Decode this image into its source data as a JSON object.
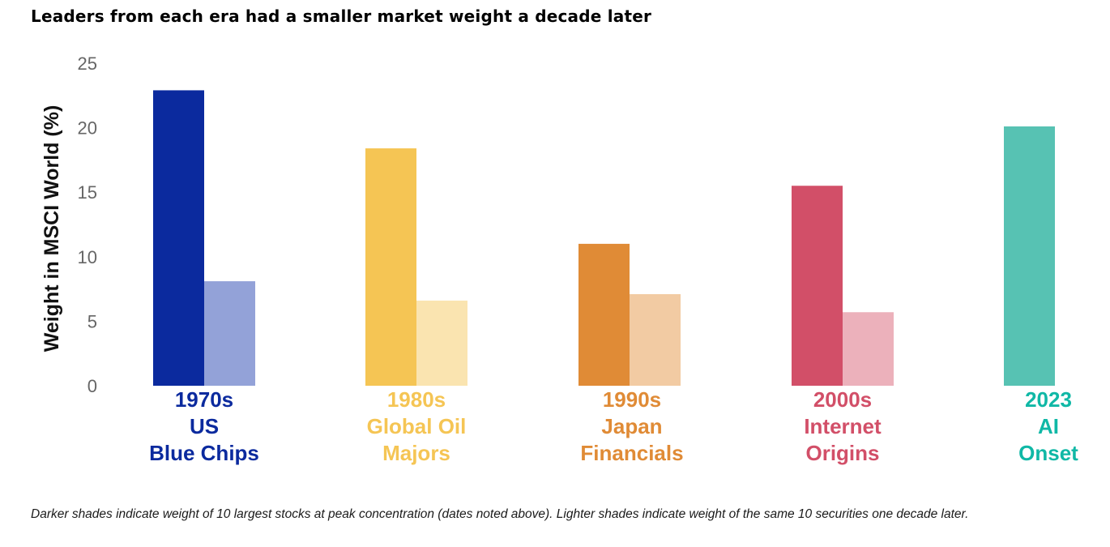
{
  "chart_data": {
    "type": "bar",
    "title": "Leaders from each era had a smaller market weight a decade later",
    "ylabel": "Weight in MSCI World (%)",
    "ylim": [
      0,
      25
    ],
    "yticks": [
      0,
      5,
      10,
      15,
      20,
      25
    ],
    "grid": false,
    "categories": [
      {
        "lines": [
          "1970s",
          "US",
          "Blue Chips"
        ],
        "color": "#0b2a9e",
        "light_color": "#93a2d8"
      },
      {
        "lines": [
          "1980s",
          "Global Oil",
          "Majors"
        ],
        "color": "#f5c554",
        "light_color": "#fae4b0"
      },
      {
        "lines": [
          "1990s",
          "Japan",
          "Financials"
        ],
        "color": "#e08b36",
        "light_color": "#f2cba3"
      },
      {
        "lines": [
          "2000s",
          "Internet",
          "Origins"
        ],
        "color": "#d24f68",
        "light_color": "#ecb1bb"
      },
      {
        "lines": [
          "2023",
          "AI",
          "Onset"
        ],
        "color": "#57c2b3",
        "label_color": "#10b8a6",
        "light_color": null
      }
    ],
    "series": [
      {
        "values": [
          22.9,
          18.4,
          11.0,
          15.5,
          20.1
        ]
      },
      {
        "values": [
          8.1,
          6.6,
          7.1,
          5.7,
          null
        ]
      }
    ]
  },
  "footnote": "Darker shades indicate weight of 10 largest stocks at peak concentration (dates noted above). Lighter shades indicate weight of the same 10 securities one decade later."
}
